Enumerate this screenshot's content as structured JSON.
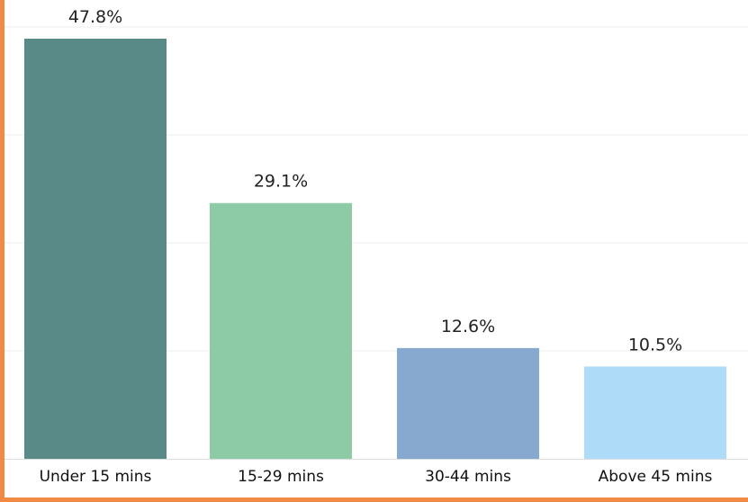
{
  "chart_data": {
    "type": "bar",
    "categories": [
      "Under 15 mins",
      "15-29 mins",
      "30-44 mins",
      "Above 45 mins"
    ],
    "values": [
      47.8,
      29.1,
      12.6,
      10.5
    ],
    "value_labels": [
      "47.8%",
      "29.1%",
      "12.6%",
      "10.5%"
    ],
    "colors": [
      "#5A8A87",
      "#8DCBA6",
      "#87A9CF",
      "#AEDBF7"
    ],
    "frame_color": "#F08A45",
    "ylim": [
      0,
      50
    ],
    "grid": true
  }
}
